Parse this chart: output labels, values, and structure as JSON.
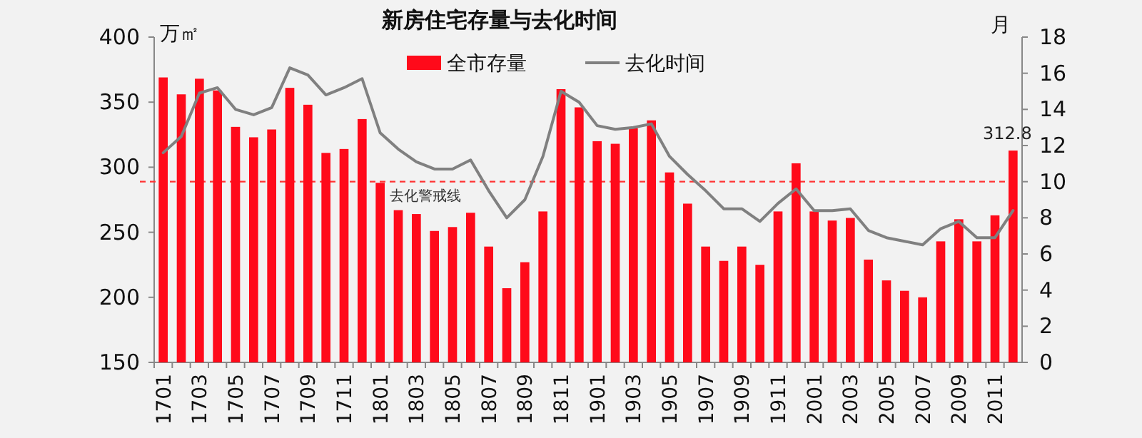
{
  "chart_data": {
    "type": "bar",
    "title": "新房住宅存量与去化时间",
    "ylabel": "万㎡",
    "y2label": "月",
    "categories": [
      "1701",
      null,
      "1703",
      null,
      "1705",
      null,
      "1707",
      null,
      "1709",
      null,
      "1711",
      null,
      "1801",
      null,
      "1803",
      null,
      "1805",
      null,
      "1807",
      null,
      "1809",
      null,
      "1811",
      null,
      "1901",
      null,
      "1903",
      null,
      "1905",
      null,
      "1907",
      null,
      "1909",
      null,
      "1911",
      null,
      "2001",
      null,
      "2003",
      null,
      "2005",
      null,
      "2007",
      null,
      "2009",
      null,
      "2011",
      null
    ],
    "series": [
      {
        "name": "全市存量",
        "color": "#ff0a1a",
        "values": [
          369,
          356,
          368,
          359,
          331,
          323,
          329,
          361,
          348,
          311,
          314,
          337,
          288,
          267,
          264,
          251,
          254,
          265,
          239,
          207,
          227,
          266,
          360,
          346,
          320,
          318,
          330,
          336,
          296,
          272,
          239,
          228,
          239,
          225,
          266,
          303,
          266,
          259,
          261,
          229,
          213,
          205,
          200,
          243,
          260,
          243,
          263,
          312.8
        ],
        "value_labels": [
          null,
          null,
          null,
          null,
          null,
          null,
          null,
          null,
          null,
          null,
          null,
          null,
          null,
          null,
          null,
          null,
          null,
          null,
          null,
          null,
          null,
          null,
          null,
          null,
          null,
          null,
          null,
          null,
          null,
          null,
          null,
          null,
          null,
          null,
          null,
          null,
          null,
          null,
          null,
          null,
          null,
          null,
          null,
          null,
          null,
          null,
          null,
          "312.8"
        ]
      },
      {
        "name": "去化时间",
        "type": "line",
        "axis": "y2",
        "color": "#808080",
        "values": [
          11.6,
          12.5,
          14.9,
          15.2,
          14.0,
          13.7,
          14.1,
          16.3,
          15.9,
          14.8,
          15.2,
          15.7,
          12.7,
          11.8,
          11.1,
          10.7,
          10.7,
          11.2,
          9.5,
          8.0,
          9.0,
          11.4,
          15.0,
          14.4,
          13.1,
          12.9,
          13.0,
          13.2,
          11.4,
          10.4,
          9.5,
          8.5,
          8.5,
          7.8,
          8.8,
          9.6,
          8.4,
          8.4,
          8.5,
          7.3,
          6.9,
          6.7,
          6.5,
          7.4,
          7.8,
          6.9,
          6.9,
          8.4
        ]
      }
    ],
    "ylim": [
      150,
      400
    ],
    "yticks": [
      150,
      200,
      250,
      300,
      350,
      400
    ],
    "y2lim": [
      0,
      18
    ],
    "y2ticks": [
      0,
      2,
      4,
      6,
      8,
      10,
      12,
      14,
      16,
      18
    ],
    "ref_lines": [
      {
        "axis": "y2",
        "value": 10,
        "label": "去化警戒线",
        "color": "#ff3333",
        "line_style": "dashed"
      }
    ],
    "legend": "top",
    "grid": false
  }
}
